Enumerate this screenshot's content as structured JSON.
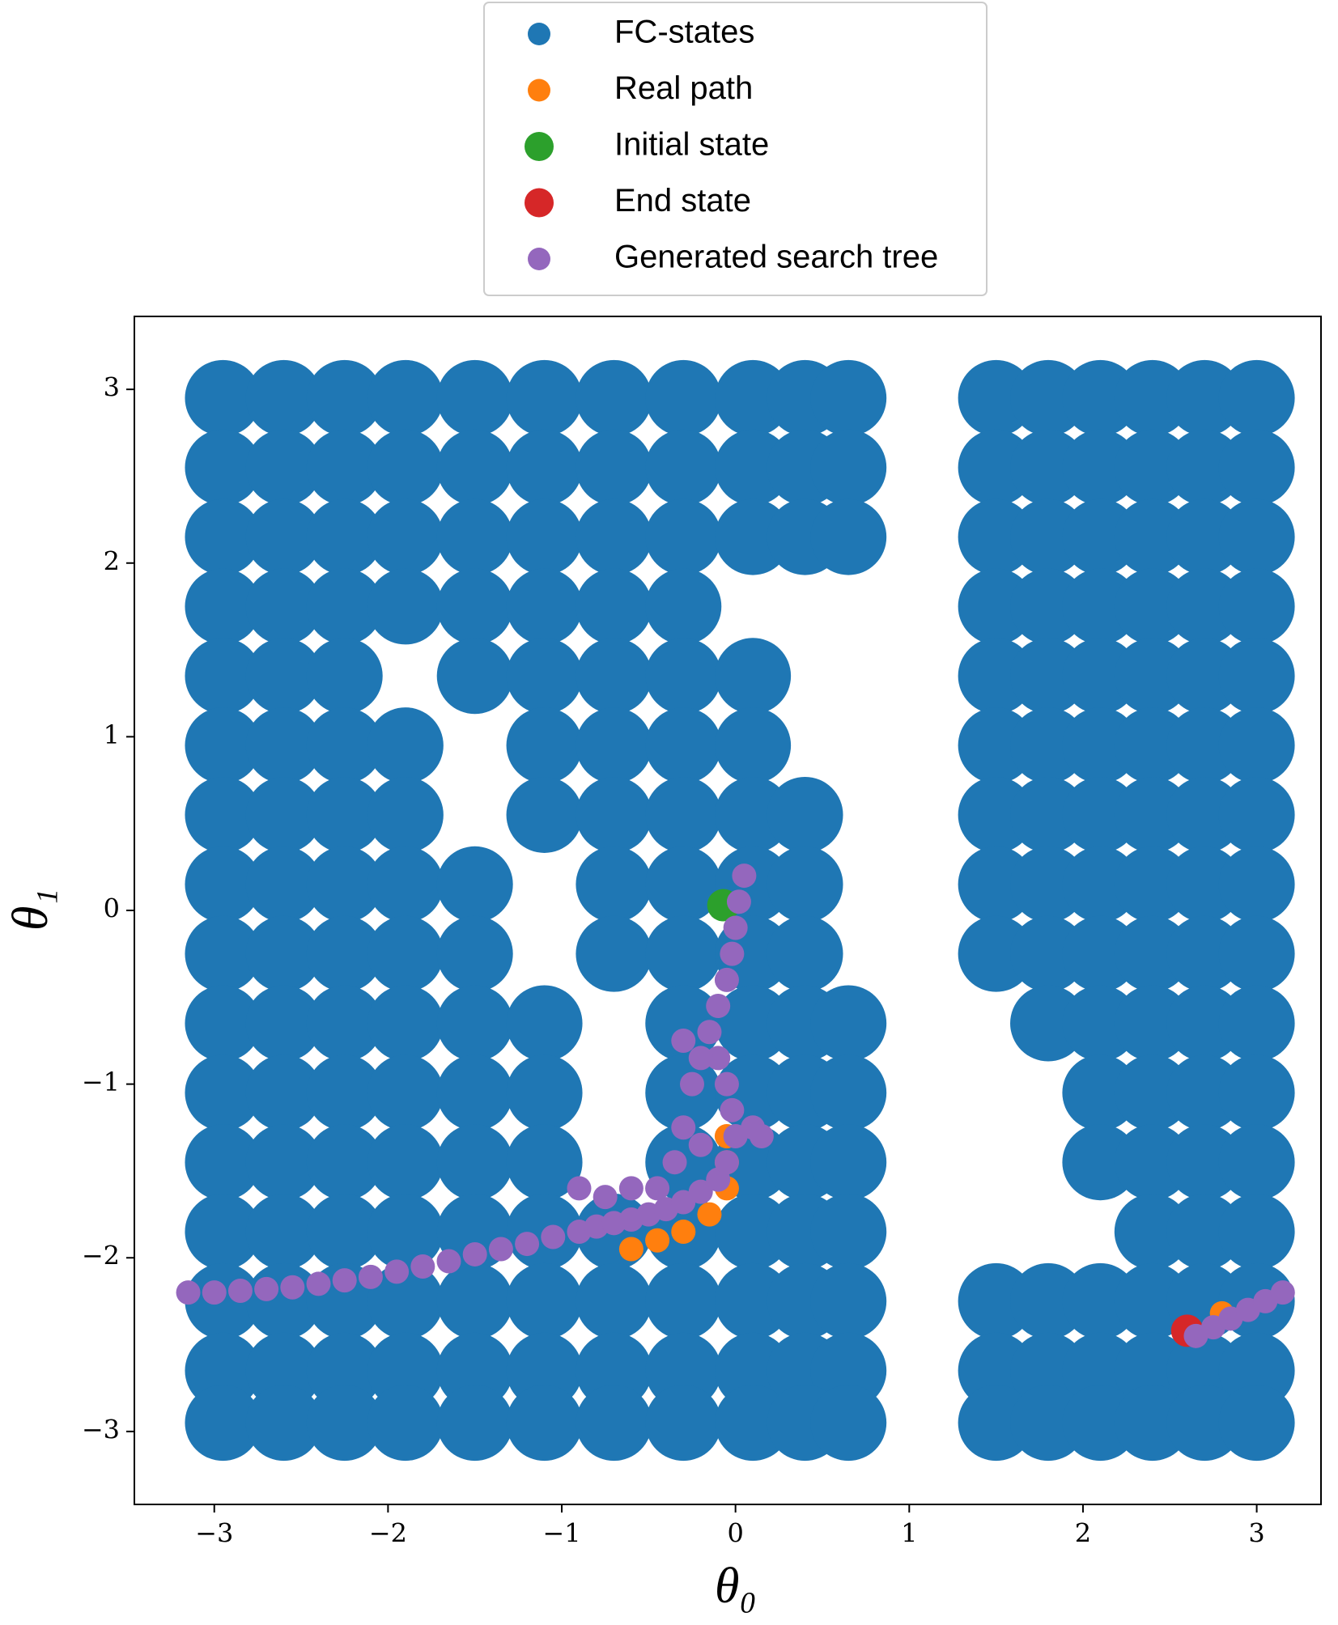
{
  "chart_data": {
    "type": "scatter",
    "xlabel": "θ₀",
    "ylabel": "θ₁",
    "xlim": [
      -3.46,
      3.37
    ],
    "ylim": [
      -3.42,
      3.42
    ],
    "xticks": [
      {
        "value": -3,
        "label": "−3"
      },
      {
        "value": -2,
        "label": "−2"
      },
      {
        "value": -1,
        "label": "−1"
      },
      0,
      1,
      2,
      3
    ],
    "yticks": [
      {
        "value": -3,
        "label": "−3"
      },
      {
        "value": -2,
        "label": "−2"
      },
      {
        "value": -1,
        "label": "−1"
      },
      0,
      1,
      2,
      3
    ],
    "legend": "top-outside",
    "series": [
      {
        "name": "FC-states",
        "color": "#1f77b4",
        "x": [
          -2.95,
          -2.6,
          -2.25,
          -1.9,
          -1.5,
          -1.1,
          -0.7,
          -0.3,
          0.1,
          0.4,
          0.65,
          -2.95,
          -2.6,
          -2.25,
          -1.9,
          -1.5,
          -1.1,
          -0.7,
          -0.3,
          0.1,
          0.4,
          0.65,
          -2.95,
          -2.6,
          -2.25,
          -1.9,
          -1.5,
          -1.1,
          -0.7,
          -0.3,
          0.1,
          0.4,
          0.65,
          -2.95,
          -2.6,
          -2.25,
          -1.9,
          -1.5,
          -1.1,
          -0.7,
          -0.3,
          -2.95,
          -2.6,
          -2.25,
          -1.5,
          -1.1,
          -0.7,
          -0.3,
          0.1,
          -2.95,
          -2.6,
          -2.25,
          -1.9,
          -1.1,
          -0.7,
          -0.3,
          0.1,
          -2.95,
          -2.6,
          -2.25,
          -1.9,
          -1.1,
          -0.7,
          -0.3,
          0.1,
          0.4,
          -2.95,
          -2.6,
          -2.25,
          -1.9,
          -1.5,
          -0.7,
          -0.3,
          0.1,
          0.4,
          -2.95,
          -2.6,
          -2.25,
          -1.9,
          -1.5,
          -0.7,
          -0.3,
          0.1,
          0.4,
          -2.95,
          -2.6,
          -2.25,
          -1.9,
          -1.5,
          -1.1,
          -0.3,
          0.1,
          0.4,
          0.65,
          -2.95,
          -2.6,
          -2.25,
          -1.9,
          -1.5,
          -1.1,
          -0.3,
          0.1,
          0.4,
          0.65,
          -2.95,
          -2.6,
          -2.25,
          -1.9,
          -1.5,
          -1.1,
          -0.3,
          0.1,
          0.4,
          0.65,
          -2.95,
          -2.6,
          -2.25,
          -1.9,
          -1.5,
          -1.1,
          -0.7,
          -0.3,
          0.1,
          0.4,
          0.65,
          -2.95,
          -2.6,
          -2.25,
          -1.9,
          -1.5,
          -1.1,
          -0.7,
          -0.3,
          0.1,
          0.4,
          0.65,
          -2.95,
          -2.6,
          -2.25,
          -1.9,
          -1.5,
          -1.1,
          -0.7,
          -0.3,
          0.1,
          0.4,
          0.65,
          -2.95,
          -2.6,
          -2.25,
          -1.9,
          -1.5,
          -1.1,
          -0.7,
          -0.3,
          0.1,
          0.4,
          0.65,
          1.5,
          1.8,
          2.1,
          2.4,
          2.7,
          3.0,
          1.5,
          1.8,
          2.1,
          2.4,
          2.7,
          3.0,
          1.5,
          1.8,
          2.1,
          2.4,
          2.7,
          3.0,
          1.5,
          1.8,
          2.1,
          2.4,
          2.7,
          3.0,
          1.5,
          1.8,
          2.1,
          2.4,
          2.7,
          3.0,
          1.5,
          1.8,
          2.1,
          2.4,
          2.7,
          3.0,
          1.5,
          1.8,
          2.1,
          2.4,
          2.7,
          3.0,
          1.5,
          1.8,
          2.1,
          2.4,
          2.7,
          3.0,
          1.5,
          1.8,
          2.1,
          2.4,
          2.7,
          3.0,
          1.8,
          2.1,
          2.4,
          2.7,
          3.0,
          2.1,
          2.4,
          2.7,
          3.0,
          2.1,
          2.4,
          2.7,
          3.0,
          2.4,
          2.7,
          3.0,
          1.5,
          1.8,
          2.1,
          2.4,
          2.7,
          3.0,
          1.5,
          1.8,
          2.1,
          2.4,
          2.7,
          3.0,
          1.5,
          1.8,
          2.1,
          2.4,
          2.7,
          3.0
        ],
        "values": [
          2.95,
          2.95,
          2.95,
          2.95,
          2.95,
          2.95,
          2.95,
          2.95,
          2.95,
          2.95,
          2.95,
          2.55,
          2.55,
          2.55,
          2.55,
          2.55,
          2.55,
          2.55,
          2.55,
          2.55,
          2.55,
          2.55,
          2.15,
          2.15,
          2.15,
          2.15,
          2.15,
          2.15,
          2.15,
          2.15,
          2.15,
          2.15,
          2.15,
          1.75,
          1.75,
          1.75,
          1.75,
          1.75,
          1.75,
          1.75,
          1.75,
          1.35,
          1.35,
          1.35,
          1.35,
          1.35,
          1.35,
          1.35,
          1.35,
          0.95,
          0.95,
          0.95,
          0.95,
          0.95,
          0.95,
          0.95,
          0.95,
          0.55,
          0.55,
          0.55,
          0.55,
          0.55,
          0.55,
          0.55,
          0.55,
          0.55,
          0.15,
          0.15,
          0.15,
          0.15,
          0.15,
          0.15,
          0.15,
          0.15,
          0.15,
          -0.25,
          -0.25,
          -0.25,
          -0.25,
          -0.25,
          -0.25,
          -0.25,
          -0.25,
          -0.25,
          -0.65,
          -0.65,
          -0.65,
          -0.65,
          -0.65,
          -0.65,
          -0.65,
          -0.65,
          -0.65,
          -0.65,
          -1.05,
          -1.05,
          -1.05,
          -1.05,
          -1.05,
          -1.05,
          -1.05,
          -1.05,
          -1.05,
          -1.05,
          -1.45,
          -1.45,
          -1.45,
          -1.45,
          -1.45,
          -1.45,
          -1.45,
          -1.45,
          -1.45,
          -1.45,
          -1.85,
          -1.85,
          -1.85,
          -1.85,
          -1.85,
          -1.85,
          -1.85,
          -1.85,
          -1.85,
          -1.85,
          -1.85,
          -2.25,
          -2.25,
          -2.25,
          -2.25,
          -2.25,
          -2.25,
          -2.25,
          -2.25,
          -2.25,
          -2.25,
          -2.25,
          -2.65,
          -2.65,
          -2.65,
          -2.65,
          -2.65,
          -2.65,
          -2.65,
          -2.65,
          -2.65,
          -2.65,
          -2.65,
          -2.95,
          -2.95,
          -2.95,
          -2.95,
          -2.95,
          -2.95,
          -2.95,
          -2.95,
          -2.95,
          -2.95,
          -2.95,
          2.95,
          2.95,
          2.95,
          2.95,
          2.95,
          2.95,
          2.55,
          2.55,
          2.55,
          2.55,
          2.55,
          2.55,
          2.15,
          2.15,
          2.15,
          2.15,
          2.15,
          2.15,
          1.75,
          1.75,
          1.75,
          1.75,
          1.75,
          1.75,
          1.35,
          1.35,
          1.35,
          1.35,
          1.35,
          1.35,
          0.95,
          0.95,
          0.95,
          0.95,
          0.95,
          0.95,
          0.55,
          0.55,
          0.55,
          0.55,
          0.55,
          0.55,
          0.15,
          0.15,
          0.15,
          0.15,
          0.15,
          0.15,
          -0.25,
          -0.25,
          -0.25,
          -0.25,
          -0.25,
          -0.25,
          -0.65,
          -0.65,
          -0.65,
          -0.65,
          -0.65,
          -1.05,
          -1.05,
          -1.05,
          -1.05,
          -1.45,
          -1.45,
          -1.45,
          -1.45,
          -1.85,
          -1.85,
          -1.85,
          -2.25,
          -2.25,
          -2.25,
          -2.25,
          -2.25,
          -2.25,
          -2.65,
          -2.65,
          -2.65,
          -2.65,
          -2.65,
          -2.65,
          -2.95,
          -2.95,
          -2.95,
          -2.95,
          -2.95,
          -2.95
        ]
      },
      {
        "name": "Real path",
        "color": "#ff7f0e",
        "x": [
          -0.6,
          -0.45,
          -0.3,
          -0.15,
          -0.05,
          -0.05,
          -0.05,
          2.8
        ],
        "values": [
          -1.95,
          -1.9,
          -1.85,
          -1.75,
          -1.6,
          -1.45,
          -1.3,
          -2.32
        ]
      },
      {
        "name": "Initial state",
        "color": "#2ca02c",
        "x": [
          -0.07
        ],
        "values": [
          0.03
        ]
      },
      {
        "name": "End state",
        "color": "#d62728",
        "x": [
          2.6
        ],
        "values": [
          -2.42
        ]
      },
      {
        "name": "Generated search tree",
        "color": "#9467bd",
        "x": [
          -3.15,
          -3.0,
          -2.85,
          -2.7,
          -2.55,
          -2.4,
          -2.25,
          -2.1,
          -1.95,
          -1.8,
          -1.65,
          -1.5,
          -1.35,
          -1.2,
          -1.05,
          -0.9,
          -0.8,
          -0.7,
          -0.6,
          -0.5,
          -0.4,
          -0.3,
          -0.2,
          -0.1,
          -0.05,
          0.0,
          -0.02,
          -0.05,
          -0.1,
          -0.15,
          -0.1,
          -0.05,
          -0.02,
          0.0,
          0.02,
          0.05,
          -0.9,
          -0.75,
          -0.6,
          -0.45,
          -0.35,
          -0.3,
          -0.25,
          -0.2,
          0.1,
          0.15,
          -0.2,
          -0.3,
          2.65,
          2.75,
          2.85,
          2.95,
          3.05,
          3.15
        ],
        "values": [
          -2.2,
          -2.2,
          -2.19,
          -2.18,
          -2.17,
          -2.15,
          -2.13,
          -2.11,
          -2.08,
          -2.05,
          -2.02,
          -1.98,
          -1.95,
          -1.92,
          -1.88,
          -1.85,
          -1.82,
          -1.8,
          -1.78,
          -1.75,
          -1.72,
          -1.68,
          -1.62,
          -1.55,
          -1.45,
          -1.3,
          -1.15,
          -1.0,
          -0.85,
          -0.7,
          -0.55,
          -0.4,
          -0.25,
          -0.1,
          0.05,
          0.2,
          -1.6,
          -1.65,
          -1.6,
          -1.6,
          -1.45,
          -1.25,
          -1.0,
          -0.85,
          -1.25,
          -1.3,
          -1.35,
          -0.75,
          -2.45,
          -2.4,
          -2.35,
          -2.3,
          -2.25,
          -2.2
        ]
      }
    ]
  }
}
